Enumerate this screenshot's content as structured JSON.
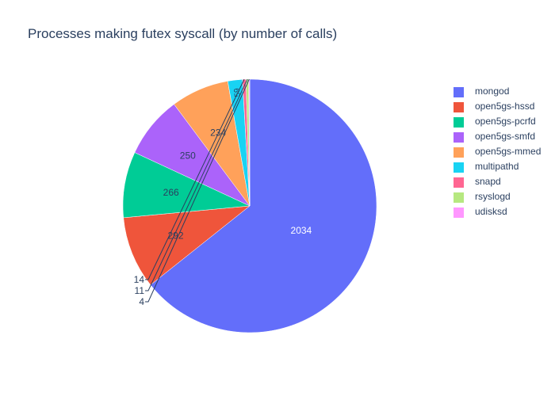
{
  "chart_data": {
    "type": "pie",
    "title": "Processes making futex syscall (by number of calls)",
    "labels": [
      "mongod",
      "open5gs-hssd",
      "open5gs-pcrfd",
      "open5gs-smfd",
      "open5gs-mmed",
      "multipathd",
      "snapd",
      "rsyslogd",
      "udisksd"
    ],
    "values": [
      2034,
      292,
      266,
      250,
      234,
      59,
      14,
      11,
      4
    ],
    "colors": [
      "#636efa",
      "#EF553B",
      "#00cc96",
      "#ab63fa",
      "#FFA15A",
      "#19d3f3",
      "#FF6692",
      "#B6E880",
      "#FF97FF"
    ],
    "legend_position": "right"
  }
}
